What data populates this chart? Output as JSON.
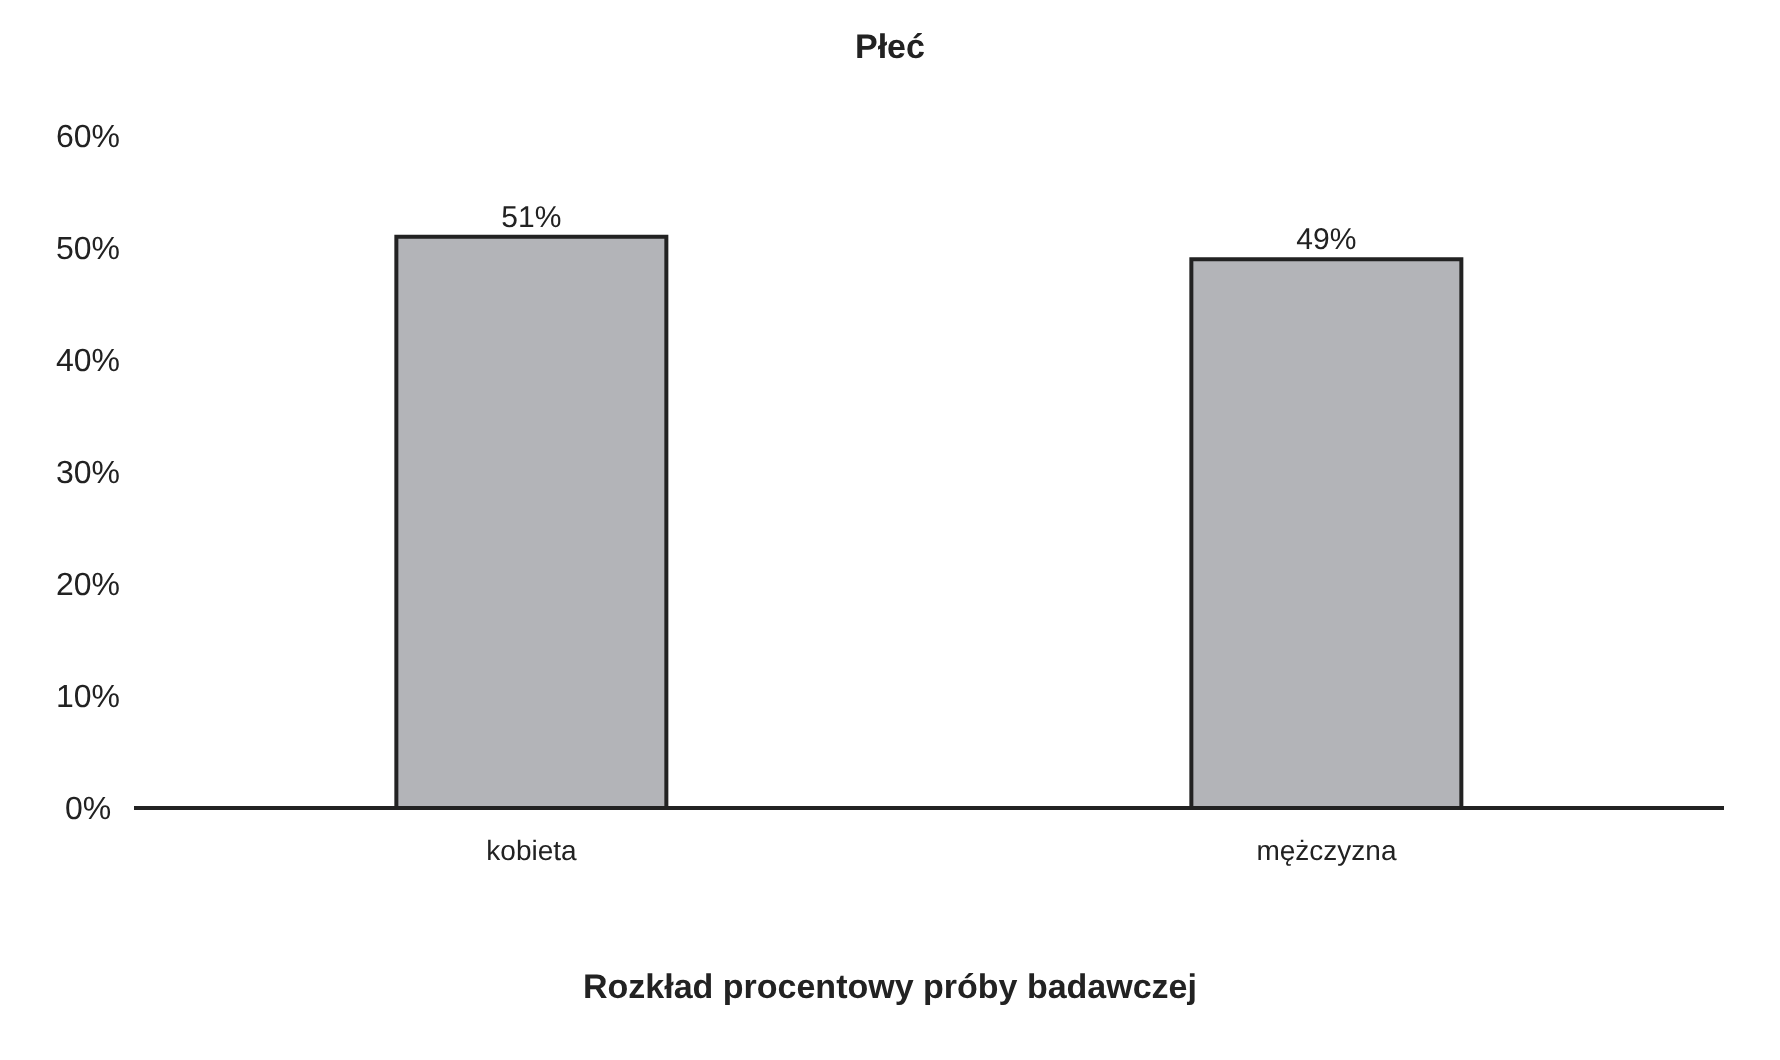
{
  "chart_data": {
    "type": "bar",
    "title": "Płeć",
    "xlabel": "Rozkład procentowy próby badawczej",
    "categories": [
      "kobieta",
      "mężczyzna"
    ],
    "values": [
      51,
      49
    ],
    "value_labels": [
      "51%",
      "49%"
    ],
    "color": "#b3b4b8",
    "ylim": [
      0,
      60
    ],
    "yticks": [
      {
        "value": 0,
        "label": "0%"
      },
      {
        "value": 10,
        "label": "10%"
      },
      {
        "value": 20,
        "label": "20%"
      },
      {
        "value": 30,
        "label": "30%"
      },
      {
        "value": 40,
        "label": "40%"
      },
      {
        "value": 50,
        "label": "50%"
      },
      {
        "value": 60,
        "label": "60%"
      }
    ],
    "grid": false,
    "legend": false
  }
}
